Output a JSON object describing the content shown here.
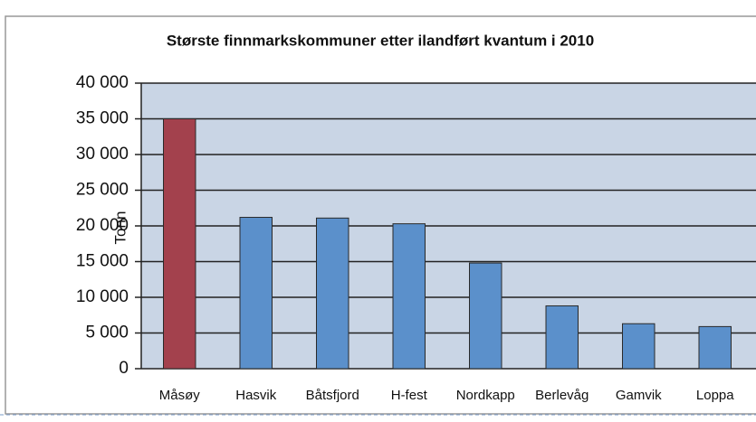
{
  "chart_data": {
    "type": "bar",
    "title": "Største finnmarkskommuner etter ilandført kvantum i 2010",
    "y_label": "Tonn",
    "categories": [
      "Måsøy",
      "Hasvik",
      "Båtsfjord",
      "H-fest",
      "Nordkapp",
      "Berlevåg",
      "Gamvik",
      "Loppa"
    ],
    "values": [
      35000,
      21200,
      21100,
      20300,
      14800,
      8800,
      6300,
      5900
    ],
    "colors": [
      "#a3414d",
      "#5b90cb",
      "#5b90cb",
      "#5b90cb",
      "#5b90cb",
      "#5b90cb",
      "#5b90cb",
      "#5b90cb"
    ],
    "ylim": [
      0,
      40000
    ],
    "yticks": [
      {
        "value": 0,
        "label": "0"
      },
      {
        "value": 5000,
        "label": "5 000"
      },
      {
        "value": 10000,
        "label": "10 000"
      },
      {
        "value": 15000,
        "label": "15 000"
      },
      {
        "value": 20000,
        "label": "20 000"
      },
      {
        "value": 25000,
        "label": "25 000"
      },
      {
        "value": 30000,
        "label": "30 000"
      },
      {
        "value": 35000,
        "label": "35 000"
      },
      {
        "value": 40000,
        "label": "40 000"
      }
    ],
    "grid": true
  }
}
